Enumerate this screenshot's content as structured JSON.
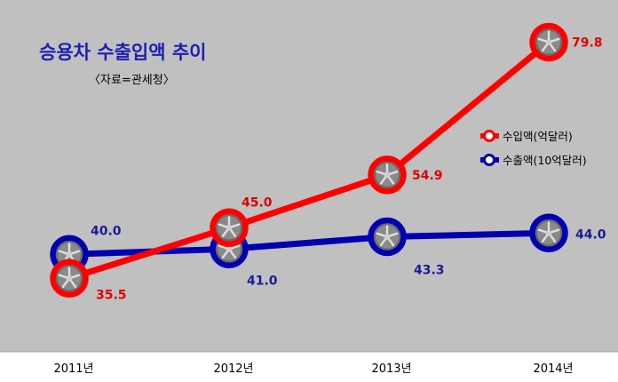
{
  "colors": {
    "plot_bg": "#c0c0c0",
    "import": "#ff0000",
    "export": "#0000b0",
    "import_label": "#e00000",
    "export_label": "#1a1a9a",
    "title": "#1f1fb4"
  },
  "chart_data": {
    "type": "line",
    "title": "승용차 수출입액 추이",
    "subtitle": "〈자료=관세청〉",
    "categories": [
      "2011년",
      "2012년",
      "2013년",
      "2014년"
    ],
    "series": [
      {
        "name": "수입액(억달러)",
        "color": "#ff0000",
        "values": [
          35.5,
          45.0,
          54.9,
          79.8
        ],
        "labels": [
          "35.5",
          "45.0",
          "54.9",
          "79.8"
        ]
      },
      {
        "name": "수출액(10억달러)",
        "color": "#0000b0",
        "values": [
          40.0,
          41.0,
          43.3,
          44.0
        ],
        "labels": [
          "40.0",
          "41.0",
          "43.3",
          "44.0"
        ]
      }
    ],
    "marker": "wheel-icon",
    "legend_position": "right",
    "grid": false
  }
}
